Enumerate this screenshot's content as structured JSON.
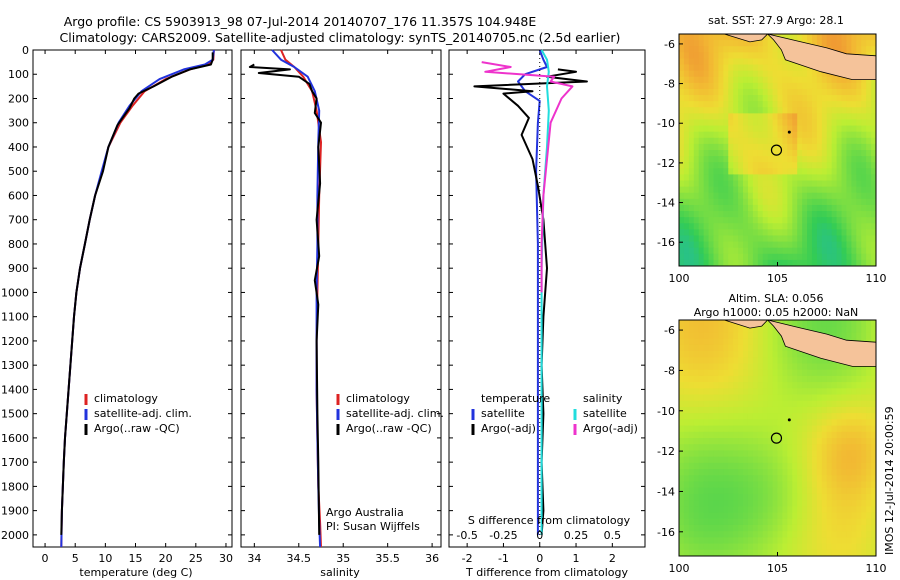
{
  "header": {
    "title_line1": "Argo profile: CS 5903913_98 07-Jul-2014 20140707_176 11.357S 104.948E",
    "title_line2": "Climatology: CARS2009. Satellite-adjusted climatology: synTS_20140705.nc (2.5d earlier)"
  },
  "colors": {
    "climatology": "#dd2222",
    "satellite_clim": "#2233dd",
    "argo": "#000000",
    "salinity_satellite": "#22dddd",
    "salinity_argo": "#ee33cc",
    "land": "#f5c39a"
  },
  "side_text": "IMOS 12-Jul-2014 20:00:59",
  "chart_data": [
    {
      "id": "temperature",
      "type": "line",
      "xlabel": "temperature (deg C)",
      "ylabel": "",
      "xlim": [
        -2,
        31
      ],
      "ylim": [
        2050,
        0
      ],
      "x_ticks": [
        "0",
        "5",
        "10",
        "15",
        "20",
        "25",
        "30"
      ],
      "y_ticks": [
        "0",
        "100",
        "200",
        "300",
        "400",
        "500",
        "600",
        "700",
        "800",
        "900",
        "1000",
        "1100",
        "1200",
        "1300",
        "1400",
        "1500",
        "1600",
        "1700",
        "1800",
        "1900",
        "2000"
      ],
      "legend": [
        "climatology",
        "satellite-adj. clim.",
        "Argo(..raw -QC)"
      ],
      "series": [
        {
          "name": "climatology",
          "color_key": "climatology",
          "x": [
            28.0,
            27.9,
            27.0,
            24.0,
            20.0,
            16.5,
            14.5,
            12.5,
            10.5,
            9.5,
            8.3,
            7.4,
            6.6,
            5.8,
            5.2,
            4.8,
            4.5,
            4.2,
            3.9,
            3.6,
            3.3,
            3.1,
            2.8,
            2.7
          ],
          "y": [
            0,
            40,
            60,
            80,
            120,
            170,
            230,
            300,
            400,
            500,
            600,
            700,
            800,
            900,
            1000,
            1100,
            1200,
            1300,
            1400,
            1500,
            1600,
            1700,
            1900,
            2050
          ]
        },
        {
          "name": "satellite-adj. clim.",
          "color_key": "satellite_clim",
          "x": [
            28.0,
            27.8,
            26.5,
            23.0,
            19.0,
            16.0,
            14.0,
            12.2,
            10.5,
            9.4,
            8.3,
            7.4,
            6.6,
            5.8,
            5.2,
            4.8,
            4.5,
            4.2,
            3.9,
            3.6,
            3.3,
            3.1,
            2.8,
            2.7
          ],
          "y": [
            0,
            40,
            60,
            80,
            120,
            170,
            230,
            300,
            400,
            500,
            600,
            700,
            800,
            900,
            1000,
            1100,
            1200,
            1300,
            1400,
            1500,
            1600,
            1700,
            1900,
            2050
          ]
        },
        {
          "name": "Argo(..raw -QC)",
          "color_key": "argo",
          "x": [
            27.8,
            27.8,
            27.5,
            24.0,
            21.0,
            18.0,
            15.5,
            14.8,
            14.0,
            12.0,
            10.5,
            9.6,
            8.3,
            7.4,
            6.6,
            5.8,
            5.2,
            4.8,
            4.5,
            4.2,
            3.9,
            3.6,
            3.3,
            3.1,
            2.8,
            2.7
          ],
          "y": [
            10,
            40,
            60,
            80,
            110,
            150,
            180,
            200,
            240,
            310,
            400,
            500,
            600,
            700,
            800,
            900,
            1000,
            1100,
            1200,
            1300,
            1400,
            1500,
            1600,
            1700,
            1900,
            2000
          ]
        }
      ]
    },
    {
      "id": "salinity",
      "type": "line",
      "xlabel": "salinity",
      "ylabel": "",
      "xlim": [
        33.85,
        36.1
      ],
      "ylim": [
        2050,
        0
      ],
      "x_ticks": [
        "34",
        "34.5",
        "35",
        "35.5",
        "36"
      ],
      "legend": [
        "climatology",
        "satellite-adj. clim.",
        "Argo(..raw -QC)"
      ],
      "annotation_lines": [
        "Argo Australia",
        "PI: Susan Wijffels"
      ],
      "series": [
        {
          "name": "climatology",
          "color_key": "climatology",
          "x": [
            34.3,
            34.35,
            34.45,
            34.55,
            34.65,
            34.7,
            34.75,
            34.73,
            34.72,
            34.71,
            34.7,
            34.7,
            34.71,
            34.72,
            34.74,
            34.75
          ],
          "y": [
            0,
            40,
            70,
            110,
            170,
            250,
            380,
            600,
            800,
            1000,
            1200,
            1400,
            1600,
            1800,
            1950,
            2050
          ]
        },
        {
          "name": "satellite-adj. clim.",
          "color_key": "satellite_clim",
          "x": [
            34.2,
            34.3,
            34.45,
            34.6,
            34.68,
            34.73,
            34.72,
            34.71,
            34.71,
            34.7,
            34.7,
            34.7,
            34.71,
            34.72,
            34.73,
            34.74
          ],
          "y": [
            0,
            40,
            70,
            110,
            170,
            250,
            380,
            600,
            800,
            1000,
            1200,
            1400,
            1600,
            1800,
            1950,
            2050
          ]
        },
        {
          "name": "Argo(..raw -QC)",
          "color_key": "argo",
          "x": [
            34.0,
            33.95,
            34.4,
            34.05,
            34.5,
            34.62,
            34.65,
            34.7,
            34.68,
            34.75,
            34.72,
            34.74,
            34.7,
            34.73,
            34.68,
            34.72,
            34.7,
            34.71,
            34.72,
            34.73
          ],
          "y": [
            60,
            70,
            80,
            95,
            110,
            140,
            170,
            200,
            260,
            300,
            400,
            550,
            700,
            850,
            950,
            1050,
            1200,
            1500,
            1700,
            2000
          ]
        }
      ]
    },
    {
      "id": "differences",
      "type": "line",
      "xlabel": "T difference from climatology",
      "xlabel_top": "S difference from climatology",
      "xlim": [
        -2.5,
        2.9
      ],
      "ylim": [
        2050,
        0
      ],
      "x_ticks": [
        "-2",
        "-1",
        "0",
        "1",
        "2"
      ],
      "x_ticks_top": [
        "-0.5",
        "-0.25",
        "0",
        "0.25",
        "0.5"
      ],
      "legend_left_title": "temperature",
      "legend_right_title": "salinity",
      "legend_left": [
        "satellite",
        "Argo(-adj)"
      ],
      "legend_right": [
        "satellite",
        "Argo(-adj)"
      ],
      "series": [
        {
          "name": "satellite",
          "group": "temperature",
          "color_key": "satellite_clim",
          "x": [
            0.0,
            0.1,
            0.2,
            -0.4,
            -0.6,
            -0.4,
            0.0,
            -0.05,
            -0.1,
            -0.05,
            -0.05,
            -0.05,
            -0.05
          ],
          "y": [
            0,
            40,
            70,
            100,
            130,
            170,
            210,
            300,
            500,
            800,
            1200,
            1600,
            2000
          ]
        },
        {
          "name": "Argo(-adj)",
          "group": "temperature",
          "color_key": "argo",
          "x": [
            0.5,
            1.0,
            0.2,
            1.3,
            -1.8,
            -0.2,
            -1.0,
            -0.6,
            -0.3,
            -0.5,
            -0.2,
            -0.05,
            0.1,
            0.2,
            0.1,
            0.05,
            0.1,
            0.05,
            0.1,
            0.05
          ],
          "y": [
            80,
            90,
            110,
            130,
            150,
            170,
            180,
            230,
            280,
            350,
            450,
            560,
            700,
            900,
            1100,
            1300,
            1500,
            1700,
            1900,
            2000
          ]
        },
        {
          "name": "satellite",
          "group": "salinity",
          "color_key": "salinity_satellite",
          "x": [
            0.05,
            0.2,
            0.25,
            0.2,
            0.25,
            0.2,
            0.1,
            0.05,
            0.05,
            0.05
          ],
          "y": [
            0,
            40,
            90,
            150,
            250,
            400,
            600,
            900,
            1400,
            2000
          ]
        },
        {
          "name": "Argo(-adj)",
          "group": "salinity",
          "color_key": "salinity_argo",
          "x": [
            -1.6,
            -0.8,
            -1.5,
            0.4,
            0.3,
            0.9,
            0.6,
            0.3,
            0.2,
            0.1,
            0.05,
            0.05
          ],
          "y": [
            50,
            70,
            90,
            110,
            130,
            150,
            200,
            300,
            450,
            600,
            800,
            1000
          ]
        }
      ]
    },
    {
      "id": "sst_map",
      "type": "heatmap",
      "title": "sat. SST: 27.9 Argo: 28.1",
      "xlim": [
        100,
        110
      ],
      "ylim": [
        -17.2,
        -5.5
      ],
      "x_ticks": [
        "100",
        "105",
        "110"
      ],
      "y_ticks": [
        "-6",
        "-8",
        "-10",
        "-12",
        "-14",
        "-16"
      ],
      "float_position": {
        "lon": 104.948,
        "lat": -11.357
      }
    },
    {
      "id": "sla_map",
      "type": "heatmap",
      "title": "Altim. SLA: 0.056",
      "subtitle": "Argo h1000: 0.05 h2000: NaN",
      "xlim": [
        100,
        110
      ],
      "ylim": [
        -17.2,
        -5.5
      ],
      "x_ticks": [
        "100",
        "105",
        "110"
      ],
      "y_ticks": [
        "-6",
        "-8",
        "-10",
        "-12",
        "-14",
        "-16"
      ],
      "float_position": {
        "lon": 104.948,
        "lat": -11.357
      }
    }
  ]
}
